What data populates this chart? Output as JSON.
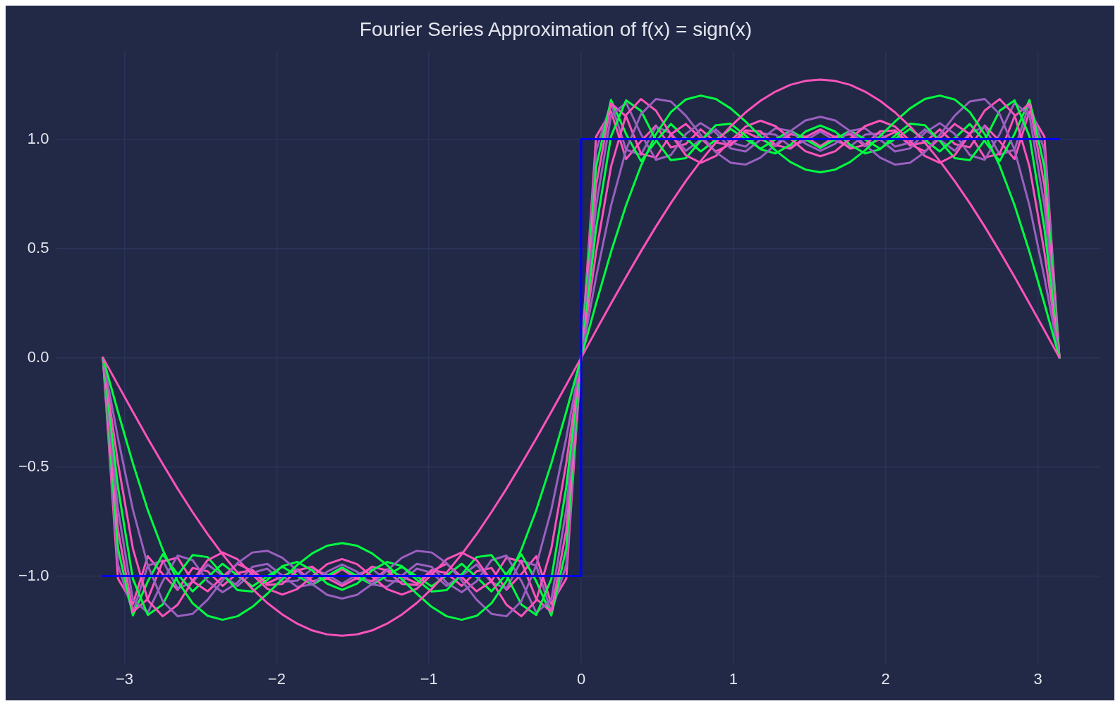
{
  "chart_data": {
    "type": "line",
    "title": "Fourier Series Approximation of f(x) = sign(x)",
    "x": [
      -3.142,
      -3.043,
      -2.945,
      -2.847,
      -2.749,
      -2.651,
      -2.553,
      -2.454,
      -2.356,
      -2.258,
      -2.16,
      -2.062,
      -1.963,
      -1.865,
      -1.767,
      -1.669,
      -1.571,
      -1.473,
      -1.374,
      -1.276,
      -1.178,
      -1.08,
      -0.982,
      -0.884,
      -0.785,
      -0.687,
      -0.589,
      -0.491,
      -0.393,
      -0.295,
      -0.196,
      -0.098,
      0,
      0.098,
      0.196,
      0.295,
      0.393,
      0.491,
      0.589,
      0.687,
      0.785,
      0.884,
      0.982,
      1.08,
      1.178,
      1.276,
      1.374,
      1.473,
      1.571,
      1.669,
      1.767,
      1.865,
      1.963,
      2.062,
      2.16,
      2.258,
      2.356,
      2.454,
      2.553,
      2.651,
      2.749,
      2.847,
      2.945,
      3.043,
      3.142
    ],
    "series": [
      {
        "type": "step",
        "color": "#0000ff",
        "x": [
          -3.142,
          0,
          3.142
        ],
        "values": [
          -1,
          1,
          1
        ]
      },
      {
        "color": "#fe53bb",
        "values": [
          0,
          -0.125,
          -0.248,
          -0.37,
          -0.487,
          -0.6,
          -0.707,
          -0.808,
          -0.9,
          -0.984,
          -1.059,
          -1.123,
          -1.176,
          -1.218,
          -1.249,
          -1.267,
          -1.273,
          -1.267,
          -1.249,
          -1.218,
          -1.176,
          -1.123,
          -1.059,
          -0.984,
          -0.9,
          -0.808,
          -0.707,
          -0.6,
          -0.487,
          -0.37,
          -0.248,
          -0.125,
          0,
          0.125,
          0.248,
          0.37,
          0.487,
          0.6,
          0.707,
          0.808,
          0.9,
          0.984,
          1.059,
          1.123,
          1.176,
          1.218,
          1.249,
          1.267,
          1.273,
          1.267,
          1.249,
          1.218,
          1.176,
          1.123,
          1.059,
          0.984,
          0.9,
          0.808,
          0.707,
          0.6,
          0.487,
          0.37,
          0.248,
          0.125,
          0
        ]
      },
      {
        "color": "#00ff41",
        "values": [
          0,
          -0.248,
          -0.484,
          -0.698,
          -0.879,
          -1.023,
          -1.124,
          -1.182,
          -1.2,
          -1.184,
          -1.141,
          -1.081,
          -1.014,
          -0.949,
          -0.896,
          -0.861,
          -0.849,
          -0.861,
          -0.896,
          -0.949,
          -1.014,
          -1.081,
          -1.141,
          -1.184,
          -1.2,
          -1.182,
          -1.124,
          -1.023,
          -0.879,
          -0.698,
          -0.484,
          -0.248,
          0,
          0.248,
          0.484,
          0.698,
          0.879,
          1.023,
          1.124,
          1.182,
          1.2,
          1.184,
          1.141,
          1.081,
          1.014,
          0.949,
          0.896,
          0.861,
          0.849,
          0.861,
          0.896,
          0.949,
          1.014,
          1.081,
          1.141,
          1.184,
          1.2,
          1.182,
          1.124,
          1.023,
          0.879,
          0.698,
          0.484,
          0.248,
          0
        ]
      },
      {
        "color": "#9b5fc0",
        "values": [
          0,
          -0.368,
          -0.696,
          -0.951,
          -1.115,
          -1.184,
          -1.173,
          -1.108,
          -1.02,
          -0.941,
          -0.892,
          -0.884,
          -0.916,
          -0.974,
          -1.037,
          -1.086,
          -1.103,
          -1.086,
          -1.037,
          -0.974,
          -0.916,
          -0.884,
          -0.892,
          -0.941,
          -1.02,
          -1.108,
          -1.173,
          -1.184,
          -1.115,
          -0.951,
          -0.696,
          -0.368,
          0,
          0.368,
          0.696,
          0.951,
          1.115,
          1.184,
          1.173,
          1.108,
          1.02,
          0.941,
          0.892,
          0.884,
          0.916,
          0.974,
          1.037,
          1.086,
          1.103,
          1.086,
          1.037,
          0.974,
          0.916,
          0.884,
          0.892,
          0.941,
          1.02,
          1.108,
          1.173,
          1.184,
          1.115,
          0.951,
          0.696,
          0.368,
          0
        ]
      },
      {
        "color": "#fe53bb",
        "values": [
          0,
          -0.483,
          -0.874,
          -1.111,
          -1.184,
          -1.131,
          -1.022,
          -0.927,
          -0.892,
          -0.923,
          -0.993,
          -1.058,
          -1.085,
          -1.06,
          -1.002,
          -0.945,
          -0.922,
          -0.945,
          -1.002,
          -1.06,
          -1.085,
          -1.058,
          -0.993,
          -0.923,
          -0.892,
          -0.927,
          -1.022,
          -1.131,
          -1.184,
          -1.111,
          -0.874,
          -0.483,
          0,
          0.483,
          0.874,
          1.111,
          1.184,
          1.131,
          1.022,
          0.927,
          0.892,
          0.923,
          0.993,
          1.058,
          1.085,
          1.06,
          1.002,
          0.945,
          0.922,
          0.945,
          1.002,
          1.06,
          1.085,
          1.058,
          0.993,
          0.923,
          0.892,
          0.927,
          1.022,
          1.131,
          1.184,
          1.111,
          0.874,
          0.483,
          0
        ]
      },
      {
        "color": "#00ff41",
        "values": [
          0,
          -0.593,
          -1.013,
          -1.178,
          -1.13,
          -0.996,
          -0.904,
          -0.913,
          -0.992,
          -1.064,
          -1.071,
          -1.017,
          -0.954,
          -0.935,
          -0.974,
          -1.035,
          -1.063,
          -1.035,
          -0.974,
          -0.935,
          -0.954,
          -1.017,
          -1.071,
          -1.064,
          -0.992,
          -0.913,
          -0.904,
          -0.996,
          -1.13,
          -1.178,
          -1.013,
          -0.593,
          0,
          0.593,
          1.013,
          1.178,
          1.13,
          0.996,
          0.904,
          0.913,
          0.992,
          1.064,
          1.071,
          1.017,
          0.954,
          0.935,
          0.974,
          1.035,
          1.063,
          1.035,
          0.974,
          0.935,
          0.954,
          1.017,
          1.071,
          1.064,
          0.992,
          0.913,
          0.904,
          0.996,
          1.13,
          1.178,
          1.013,
          0.593,
          0
        ]
      },
      {
        "color": "#9b5fc0",
        "values": [
          0,
          -0.695,
          -1.109,
          -1.167,
          -1.023,
          -0.906,
          -0.927,
          -1.024,
          -1.074,
          -1.03,
          -0.958,
          -0.944,
          -0.998,
          -1.05,
          -1.038,
          -0.98,
          -0.947,
          -0.98,
          -1.038,
          -1.05,
          -0.998,
          -0.944,
          -0.958,
          -1.03,
          -1.074,
          -1.024,
          -0.927,
          -0.906,
          -1.023,
          -1.167,
          -1.109,
          -0.695,
          0,
          0.695,
          1.109,
          1.167,
          1.023,
          0.906,
          0.927,
          1.024,
          1.074,
          1.03,
          0.958,
          0.944,
          0.998,
          1.05,
          1.038,
          0.98,
          0.947,
          0.98,
          1.038,
          1.05,
          0.998,
          0.944,
          0.958,
          1.03,
          1.074,
          1.024,
          0.927,
          0.906,
          1.023,
          1.167,
          1.109,
          0.695,
          0
        ]
      },
      {
        "color": "#fe53bb",
        "values": [
          0,
          -0.789,
          -1.164,
          -1.105,
          -0.933,
          -0.916,
          -1.023,
          -1.07,
          -1.004,
          -0.944,
          -0.977,
          -1.041,
          -1.036,
          -0.974,
          -0.957,
          -1.009,
          -1.045,
          -1.009,
          -0.957,
          -0.974,
          -1.036,
          -1.041,
          -0.977,
          -0.944,
          -1.004,
          -1.07,
          -1.023,
          -0.916,
          -0.933,
          -1.105,
          -1.164,
          -0.789,
          0,
          0.789,
          1.164,
          1.105,
          0.933,
          0.916,
          1.023,
          1.07,
          1.004,
          0.944,
          0.977,
          1.041,
          1.036,
          0.974,
          0.957,
          1.009,
          1.045,
          1.009,
          0.957,
          0.974,
          1.036,
          1.041,
          0.977,
          0.944,
          1.004,
          1.07,
          1.023,
          0.916,
          0.933,
          1.105,
          1.164,
          0.789,
          0
        ]
      },
      {
        "color": "#00ff41",
        "values": [
          0,
          -0.873,
          -1.18,
          -1.024,
          -0.9,
          -0.991,
          -1.07,
          -1.005,
          -0.944,
          -0.997,
          -1.047,
          -1.001,
          -0.957,
          -0.999,
          -1.04,
          -1.0,
          -0.96,
          -1.0,
          -1.04,
          -0.999,
          -0.957,
          -1.001,
          -1.047,
          -0.997,
          -0.944,
          -1.005,
          -1.07,
          -0.991,
          -0.9,
          -1.024,
          -1.18,
          -0.873,
          0,
          0.873,
          1.18,
          1.024,
          0.9,
          0.991,
          1.07,
          1.005,
          0.944,
          0.997,
          1.047,
          1.001,
          0.957,
          0.999,
          1.04,
          1.0,
          0.96,
          1.0,
          1.04,
          0.999,
          0.957,
          1.001,
          1.047,
          0.997,
          0.944,
          1.005,
          1.07,
          0.991,
          0.9,
          1.024,
          1.18,
          0.873,
          0
        ]
      },
      {
        "color": "#9b5fc0",
        "values": [
          0,
          -0.948,
          -1.166,
          -0.952,
          -0.929,
          -1.057,
          -1.028,
          -0.947,
          -0.997,
          -1.045,
          -0.985,
          -0.966,
          -1.026,
          -1.021,
          -0.967,
          -0.993,
          -1.035,
          -0.993,
          -0.967,
          -1.021,
          -1.026,
          -0.966,
          -0.985,
          -1.045,
          -0.997,
          -0.947,
          -1.028,
          -1.057,
          -0.929,
          -0.952,
          -1.166,
          -0.948,
          0,
          0.948,
          1.166,
          0.952,
          0.929,
          1.057,
          1.028,
          0.947,
          0.997,
          1.045,
          0.985,
          0.966,
          1.026,
          1.021,
          0.967,
          0.993,
          1.035,
          0.993,
          0.967,
          1.021,
          1.026,
          0.966,
          0.985,
          1.045,
          0.997,
          0.947,
          1.028,
          1.057,
          0.929,
          0.952,
          1.166,
          0.948,
          0
        ]
      },
      {
        "color": "#fe53bb",
        "values": [
          0,
          -1.012,
          -1.128,
          -0.909,
          -0.991,
          -1.063,
          -0.963,
          -0.978,
          -1.045,
          -0.986,
          -0.972,
          -1.033,
          -1.001,
          -0.969,
          -1.023,
          -1.012,
          -0.968,
          -1.012,
          -1.023,
          -0.969,
          -1.001,
          -1.033,
          -0.972,
          -0.986,
          -1.045,
          -0.978,
          -0.963,
          -1.063,
          -0.991,
          -0.909,
          -1.128,
          -1.012,
          0,
          1.012,
          1.128,
          0.909,
          0.991,
          1.063,
          0.963,
          0.978,
          1.045,
          0.986,
          0.972,
          1.033,
          1.001,
          0.969,
          1.023,
          1.012,
          0.968,
          1.012,
          1.023,
          0.969,
          1.001,
          1.033,
          0.972,
          0.986,
          1.045,
          0.978,
          0.963,
          1.063,
          0.991,
          0.909,
          1.128,
          1.012,
          0
        ]
      }
    ],
    "xlim": [
      -3.45,
      3.41
    ],
    "xticks": [
      {
        "value": -3,
        "label": "−3"
      },
      {
        "value": -2,
        "label": "−2"
      },
      {
        "value": -1,
        "label": "−1"
      },
      0,
      1,
      2,
      3
    ],
    "ylim": [
      -1.4,
      1.4
    ],
    "yticks": [
      {
        "value": -1,
        "label": "−1.0"
      },
      {
        "value": -0.5,
        "label": "−0.5"
      },
      {
        "value": 0,
        "label": "0.0"
      },
      {
        "value": 0.5,
        "label": "0.5"
      },
      {
        "value": 1,
        "label": "1.0"
      }
    ],
    "grid": true,
    "legend": false,
    "marker": "none",
    "line_style": "solid"
  }
}
